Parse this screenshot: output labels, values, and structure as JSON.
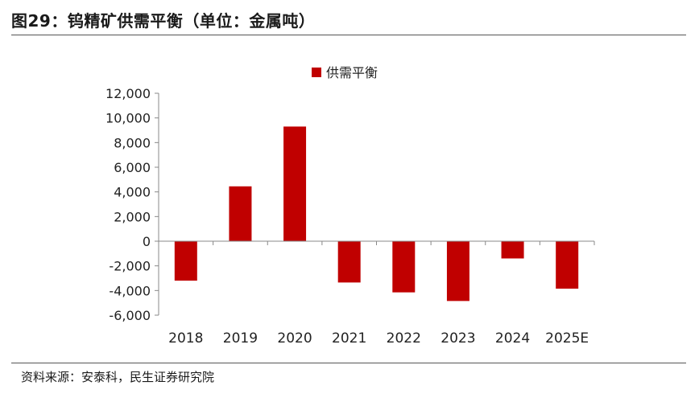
{
  "header": {
    "title": "图29：钨精矿供需平衡（单位：金属吨）"
  },
  "footer": {
    "source": "资料来源：安泰科，民生证券研究院"
  },
  "colors": {
    "bar": "#c00000",
    "axis": "#888888"
  },
  "chart_data": {
    "type": "bar",
    "title": "",
    "xlabel": "",
    "ylabel": "",
    "categories": [
      "2018",
      "2019",
      "2020",
      "2021",
      "2022",
      "2023",
      "2024",
      "2025E"
    ],
    "series": [
      {
        "name": "供需平衡",
        "values": [
          -3200,
          4450,
          9300,
          -3350,
          -4150,
          -4850,
          -1400,
          -3850
        ]
      }
    ],
    "ylim": [
      -6000,
      12000
    ],
    "yticks": [
      12000,
      10000,
      8000,
      6000,
      4000,
      2000,
      0,
      -2000,
      -4000,
      -6000
    ],
    "ytick_labels": [
      "12,000",
      "10,000",
      "8,000",
      "6,000",
      "4,000",
      "2,000",
      "0",
      "-2,000",
      "-4,000",
      "-6,000"
    ],
    "grid": false,
    "legend": "top-center"
  }
}
